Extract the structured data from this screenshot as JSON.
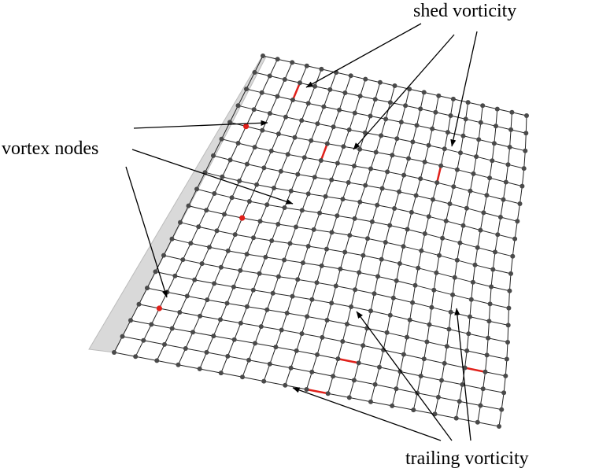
{
  "labels": {
    "shed": "shed vorticity",
    "vortex": "vortex nodes",
    "trailing": "trailing vorticity"
  },
  "mesh": {
    "rows": 19,
    "cols": 19
  },
  "colors": {
    "node": "#4a4a4a",
    "line": "#222222",
    "highlight": "#e0201a",
    "wake": "#d8d8d8",
    "arrow": "#000000"
  }
}
